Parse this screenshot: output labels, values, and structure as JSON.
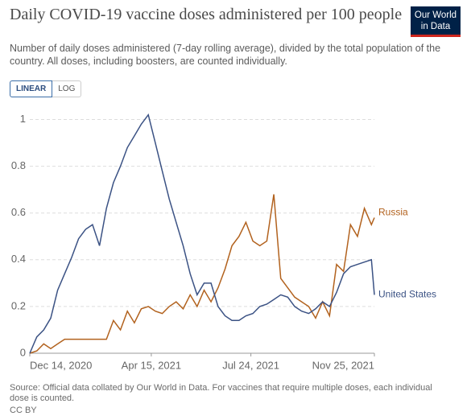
{
  "chart_data": {
    "type": "line",
    "title": "Daily COVID-19 vaccine doses administered per 100 people",
    "subtitle": "Number of daily doses administered (7-day rolling average), divided by the total population of the country. All doses, including boosters, are counted individually.",
    "logo": [
      "Our World",
      "in Data"
    ],
    "buttons": [
      "LINEAR",
      "LOG"
    ],
    "source": "Source: Official data collated by Our World in Data. For vaccines that require multiple doses, each individual dose is counted.",
    "license": "CC BY",
    "x": [
      "2020-12-14",
      "2020-12-21",
      "2020-12-28",
      "2021-01-04",
      "2021-01-11",
      "2021-01-18",
      "2021-01-25",
      "2021-02-01",
      "2021-02-08",
      "2021-02-15",
      "2021-02-22",
      "2021-03-01",
      "2021-03-08",
      "2021-03-15",
      "2021-03-22",
      "2021-03-29",
      "2021-04-05",
      "2021-04-12",
      "2021-04-19",
      "2021-04-26",
      "2021-05-03",
      "2021-05-10",
      "2021-05-17",
      "2021-05-24",
      "2021-05-31",
      "2021-06-07",
      "2021-06-14",
      "2021-06-21",
      "2021-06-28",
      "2021-07-05",
      "2021-07-12",
      "2021-07-19",
      "2021-07-26",
      "2021-08-02",
      "2021-08-09",
      "2021-08-16",
      "2021-08-23",
      "2021-08-30",
      "2021-09-06",
      "2021-09-13",
      "2021-09-20",
      "2021-09-27",
      "2021-10-04",
      "2021-10-11",
      "2021-10-18",
      "2021-10-25",
      "2021-11-01",
      "2021-11-08",
      "2021-11-15",
      "2021-11-22",
      "2021-11-25"
    ],
    "series": [
      {
        "name": "Russia",
        "color": "#b2621e",
        "values": [
          0,
          0.01,
          0.04,
          0.02,
          0.04,
          0.06,
          0.06,
          0.06,
          0.06,
          0.06,
          0.06,
          0.06,
          0.14,
          0.1,
          0.18,
          0.13,
          0.19,
          0.2,
          0.18,
          0.17,
          0.2,
          0.22,
          0.19,
          0.25,
          0.2,
          0.27,
          0.22,
          0.28,
          0.36,
          0.46,
          0.5,
          0.56,
          0.48,
          0.46,
          0.48,
          0.68,
          0.32,
          0.28,
          0.24,
          0.22,
          0.2,
          0.15,
          0.22,
          0.16,
          0.38,
          0.35,
          0.55,
          0.5,
          0.62,
          0.55,
          0.58
        ]
      },
      {
        "name": "United States",
        "color": "#3b5284",
        "values": [
          0,
          0.07,
          0.1,
          0.15,
          0.27,
          0.34,
          0.41,
          0.49,
          0.53,
          0.55,
          0.46,
          0.62,
          0.73,
          0.8,
          0.88,
          0.93,
          0.98,
          1.02,
          0.9,
          0.78,
          0.66,
          0.56,
          0.46,
          0.34,
          0.25,
          0.3,
          0.3,
          0.2,
          0.16,
          0.14,
          0.14,
          0.16,
          0.17,
          0.2,
          0.21,
          0.23,
          0.25,
          0.24,
          0.2,
          0.18,
          0.17,
          0.19,
          0.22,
          0.2,
          0.26,
          0.34,
          0.37,
          0.38,
          0.39,
          0.4,
          0.25
        ]
      }
    ],
    "xlim": [
      "2020-12-14",
      "2021-11-25"
    ],
    "xticks": [
      {
        "value": "2020-12-14",
        "label": "Dec 14, 2020"
      },
      {
        "value": "2021-04-15",
        "label": "Apr 15, 2021"
      },
      {
        "value": "2021-07-24",
        "label": "Jul 24, 2021"
      },
      {
        "value": "2021-11-25",
        "label": "Nov 25, 2021"
      }
    ],
    "ylim": [
      0,
      1.05
    ],
    "yticks": [
      0,
      0.2,
      0.4,
      0.6,
      0.8,
      1
    ],
    "grid": true
  }
}
